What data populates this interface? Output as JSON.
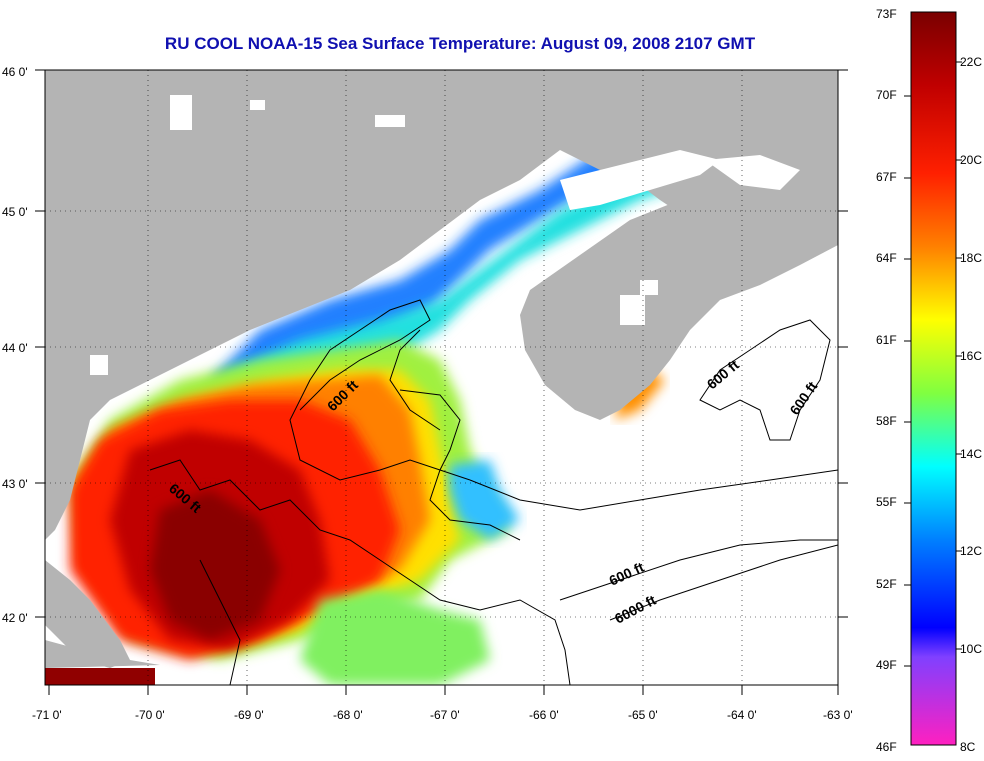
{
  "title": "RU COOL  NOAA-15  Sea Surface Temperature:  August 09, 2008 2107 GMT",
  "map": {
    "lon_range": [
      -71,
      -63
    ],
    "lat_range": [
      41.5,
      46
    ],
    "lon_ticks": [
      "-71 0'",
      "-70 0'",
      "-69 0'",
      "-68 0'",
      "-67 0'",
      "-66 0'",
      "-65 0'",
      "-64 0'",
      "-63 0'"
    ],
    "lat_ticks": [
      "46 0'",
      "45 0'",
      "44 0'",
      "43 0'",
      "42 0'"
    ],
    "contour_labels": [
      "600 ft",
      "600 ft",
      "600 ft",
      "600 ft",
      "600 ft",
      "6000 ft"
    ],
    "colors": {
      "land": "#b4b4b4",
      "cloud": "#ffffff"
    }
  },
  "colorbar": {
    "fahrenheit": [
      "73F",
      "70F",
      "67F",
      "64F",
      "61F",
      "58F",
      "55F",
      "52F",
      "49F",
      "46F"
    ],
    "celsius": [
      "22C",
      "20C",
      "18C",
      "16C",
      "14C",
      "12C",
      "10C",
      "8C"
    ],
    "range_f": [
      46,
      73
    ]
  }
}
